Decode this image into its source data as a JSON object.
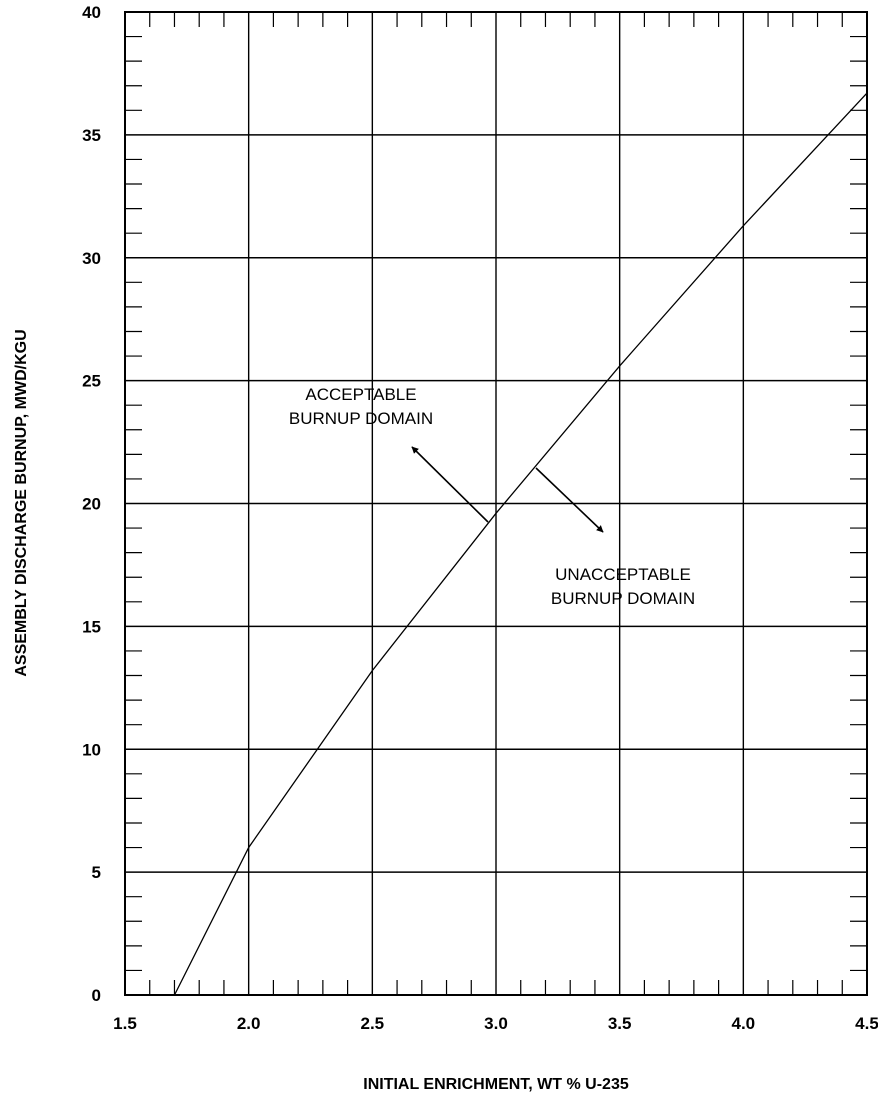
{
  "chart_data": {
    "type": "line",
    "xlabel": "INITIAL ENRICHMENT, WT % U-235",
    "ylabel": "ASSEMBLY DISCHARGE BURNUP, MWD/KGU",
    "xlim": [
      1.5,
      4.5
    ],
    "ylim": [
      0,
      40
    ],
    "x_ticks": [
      "1.5",
      "2.0",
      "2.5",
      "3.0",
      "3.5",
      "4.0",
      "4.5"
    ],
    "y_ticks": [
      "0",
      "5",
      "10",
      "15",
      "20",
      "25",
      "30",
      "35",
      "40"
    ],
    "grid": true,
    "series": [
      {
        "points": [
          [
            1.7,
            0
          ],
          [
            2.0,
            6.0
          ],
          [
            2.5,
            13.2
          ],
          [
            3.0,
            19.6
          ],
          [
            3.5,
            25.6
          ],
          [
            4.0,
            31.3
          ],
          [
            4.5,
            36.7
          ]
        ]
      }
    ],
    "annotations": [
      {
        "lines": [
          "ACCEPTABLE",
          "BURNUP DOMAIN"
        ]
      },
      {
        "lines": [
          "UNACCEPTABLE",
          "BURNUP DOMAIN"
        ]
      }
    ]
  }
}
